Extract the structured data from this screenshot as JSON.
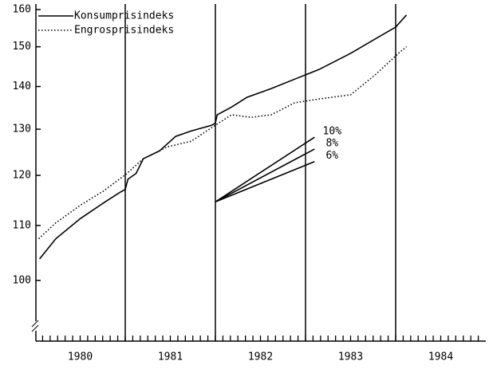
{
  "chart_data": {
    "type": "line",
    "yscale": "log",
    "xlim": [
      1980,
      1985
    ],
    "ylim": [
      90,
      160
    ],
    "yticks": [
      100,
      110,
      120,
      130,
      140,
      150,
      160
    ],
    "xticks": [
      {
        "value": 1980.5,
        "label": "1980"
      },
      {
        "value": 1981.5,
        "label": "1981"
      },
      {
        "value": 1982.5,
        "label": "1982"
      },
      {
        "value": 1983.5,
        "label": "1983"
      },
      {
        "value": 1984.5,
        "label": "1984"
      }
    ],
    "xgrid": [
      1981,
      1982,
      1983,
      1984
    ],
    "legend": "upper left",
    "series": [
      {
        "name": "Konsumprisindeks",
        "color": "#000000",
        "line_style": "solid",
        "x": [
          1980.05,
          1980.23,
          1980.5,
          1980.76,
          1980.94,
          1981.0,
          1981.03,
          1981.12,
          1981.2,
          1981.38,
          1981.56,
          1981.73,
          1981.96,
          1982.0,
          1982.02,
          1982.18,
          1982.35,
          1982.62,
          1982.88,
          1983.15,
          1983.5,
          1983.77,
          1984.0,
          1984.12
        ],
        "values": [
          103.8,
          107.5,
          111.3,
          114.4,
          116.5,
          117.1,
          119.2,
          120.4,
          123.5,
          125.2,
          128.4,
          129.6,
          130.9,
          131.4,
          133.3,
          135.1,
          137.4,
          139.5,
          141.8,
          144.2,
          148.3,
          152,
          155.2,
          158.5
        ]
      },
      {
        "name": "Engrosprisindeks",
        "color": "#000000",
        "line_style": "dotted",
        "x": [
          1980.04,
          1980.23,
          1980.5,
          1980.76,
          1981.0,
          1981.2,
          1981.47,
          1981.73,
          1982.0,
          1982.18,
          1982.4,
          1982.62,
          1982.88,
          1983.15,
          1983.5,
          1983.77,
          1984.04,
          1984.12
        ],
        "values": [
          107.5,
          110.5,
          113.9,
          116.8,
          120.1,
          123.5,
          126.1,
          127.3,
          130.9,
          133.3,
          132.7,
          133.3,
          136.1,
          137,
          138,
          142.8,
          148.5,
          150
        ]
      }
    ],
    "projections": [
      {
        "label": "10%",
        "x": [
          1982,
          1983.1
        ],
        "values": [
          114.6,
          128.2
        ]
      },
      {
        "label": "8%",
        "x": [
          1982,
          1983.1
        ],
        "values": [
          114.6,
          125.6
        ]
      },
      {
        "label": "6%",
        "x": [
          1982,
          1983.1
        ],
        "values": [
          114.6,
          122.9
        ]
      }
    ]
  }
}
